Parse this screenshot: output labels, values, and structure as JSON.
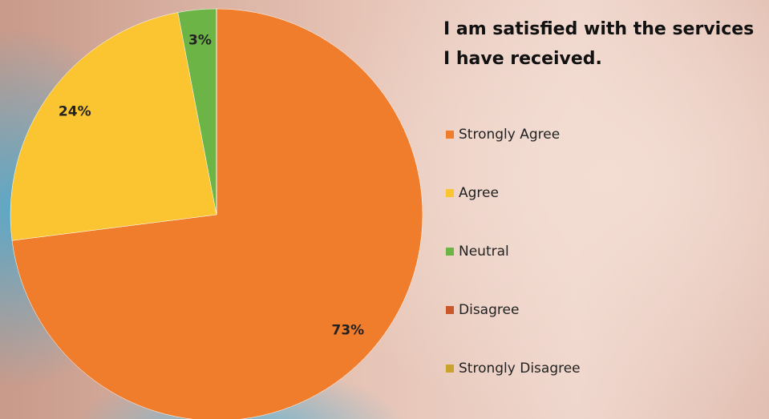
{
  "chart_data": {
    "type": "pie",
    "title": "I am satisfied with the services I have received.",
    "categories": [
      "Strongly Agree",
      "Agree",
      "Neutral",
      "Disagree",
      "Strongly Disagree"
    ],
    "values": [
      73,
      24,
      3,
      0,
      0
    ],
    "value_labels": [
      "73%",
      "24%",
      "3%",
      null,
      null
    ],
    "colors": [
      "#f07d2c",
      "#fbc531",
      "#6cb445",
      "#c9582b",
      "#c9a32a"
    ],
    "legend": "right"
  }
}
